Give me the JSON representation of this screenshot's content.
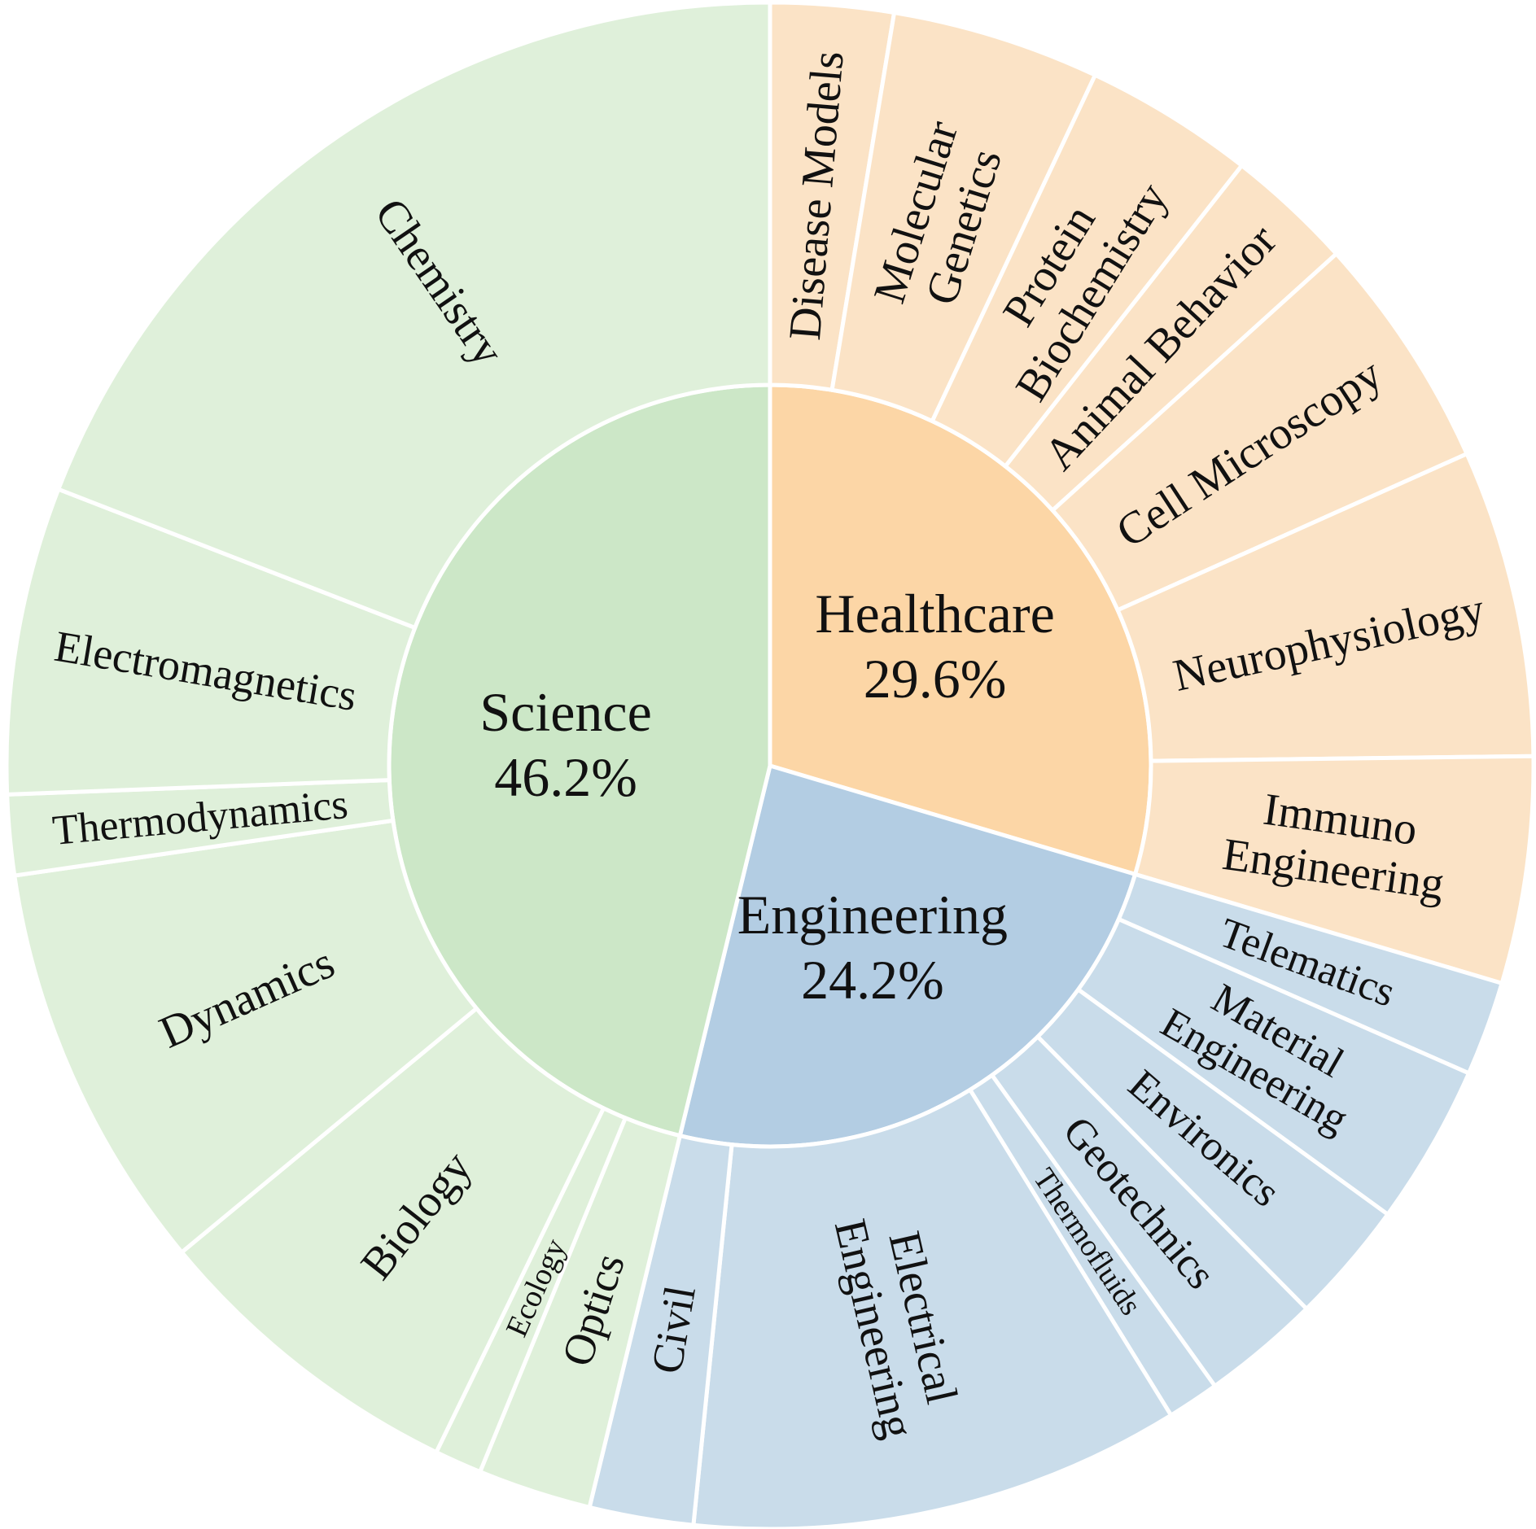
{
  "chart_data": {
    "type": "sunburst",
    "title": "",
    "categories": [
      {
        "name": "Healthcare",
        "percent_label": "29.6%",
        "value": 29.6,
        "color": "#FCD6A6",
        "child_color": "#FBE3C6",
        "children": [
          {
            "name": "Disease Models",
            "value": 2.6
          },
          {
            "name": "Molecular Genetics",
            "value": 4.4
          },
          {
            "name": "Protein Biochemistry",
            "value": 3.6
          },
          {
            "name": "Animal Behavior",
            "value": 2.7
          },
          {
            "name": "Cell Microscopy",
            "value": 5.0
          },
          {
            "name": "Neurophysiology",
            "value": 6.5
          },
          {
            "name": "Immuno Engineering",
            "value": 4.8
          }
        ]
      },
      {
        "name": "Engineering",
        "percent_label": "24.2%",
        "value": 24.2,
        "color": "#B3CDE3",
        "child_color": "#C9DCEA",
        "children": [
          {
            "name": "Telematics",
            "value": 2.0
          },
          {
            "name": "Material Engineering",
            "value": 3.4
          },
          {
            "name": "Environics",
            "value": 2.6
          },
          {
            "name": "Geotechnics",
            "value": 2.5
          },
          {
            "name": "Thermofluids",
            "value": 1.1
          },
          {
            "name": "Electrical Engineering",
            "value": 10.4
          },
          {
            "name": "Civil",
            "value": 2.2
          }
        ]
      },
      {
        "name": "Science",
        "percent_label": "46.2%",
        "value": 46.2,
        "color": "#CCE7C7",
        "child_color": "#DFF0DA",
        "children": [
          {
            "name": "Optics",
            "value": 2.4
          },
          {
            "name": "Ecology",
            "value": 1.0
          },
          {
            "name": "Biology",
            "value": 6.8
          },
          {
            "name": "Dynamics",
            "value": 8.7
          },
          {
            "name": "Thermodynamics",
            "value": 1.7
          },
          {
            "name": "Electromagnetics",
            "value": 6.5
          },
          {
            "name": "Chemistry",
            "value": 19.1
          }
        ]
      }
    ]
  }
}
